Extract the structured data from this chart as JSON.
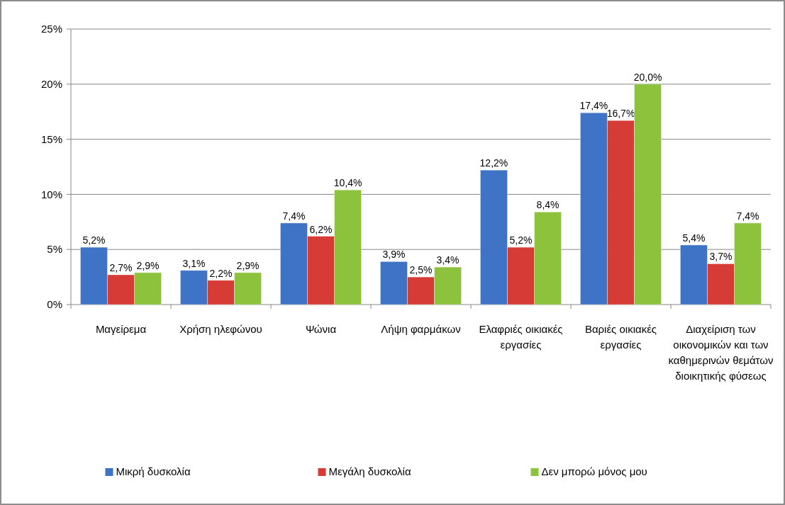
{
  "chart_data": {
    "type": "bar",
    "categories": [
      "Μαγείρεμα",
      "Χρήση ηλεφώνου",
      "Ψώνια",
      "Λήψη φαρμάκων",
      "Ελαφριές οικιακές εργασίες",
      "Βαριές οικιακές εργασίες",
      "Διαχείριση των οικονομικών και των καθημερινών θεμάτων διοικητικής φύσεως"
    ],
    "series": [
      {
        "name": "Μικρή δυσκολία",
        "color": "#3f73c6",
        "values": [
          5.2,
          3.1,
          7.4,
          3.9,
          12.2,
          17.4,
          5.4
        ],
        "value_labels": [
          "5,2%",
          "3,1%",
          "7,4%",
          "3,9%",
          "12,2%",
          "17,4%",
          "5,4%"
        ]
      },
      {
        "name": "Μεγάλη δυσκολία",
        "color": "#d63c35",
        "values": [
          2.7,
          2.2,
          6.2,
          2.5,
          5.2,
          16.7,
          3.7
        ],
        "value_labels": [
          "2,7%",
          "2,2%",
          "6,2%",
          "2,5%",
          "5,2%",
          "16,7%",
          "3,7%"
        ]
      },
      {
        "name": "Δεν μπορώ μόνος μου",
        "color": "#8dc23c",
        "values": [
          2.9,
          2.9,
          10.4,
          3.4,
          8.4,
          20.0,
          7.4
        ],
        "value_labels": [
          "2,9%",
          "2,9%",
          "10,4%",
          "3,4%",
          "8,4%",
          "20,0%",
          "7,4%"
        ]
      }
    ],
    "ylim": [
      0,
      25
    ],
    "yticks": [
      {
        "value": 0,
        "label": "0%"
      },
      {
        "value": 5,
        "label": "5%"
      },
      {
        "value": 10,
        "label": "10%"
      },
      {
        "value": 15,
        "label": "15%"
      },
      {
        "value": 20,
        "label": "20%"
      },
      {
        "value": 25,
        "label": "25%"
      }
    ],
    "grid": "y",
    "legend": "bottom"
  }
}
